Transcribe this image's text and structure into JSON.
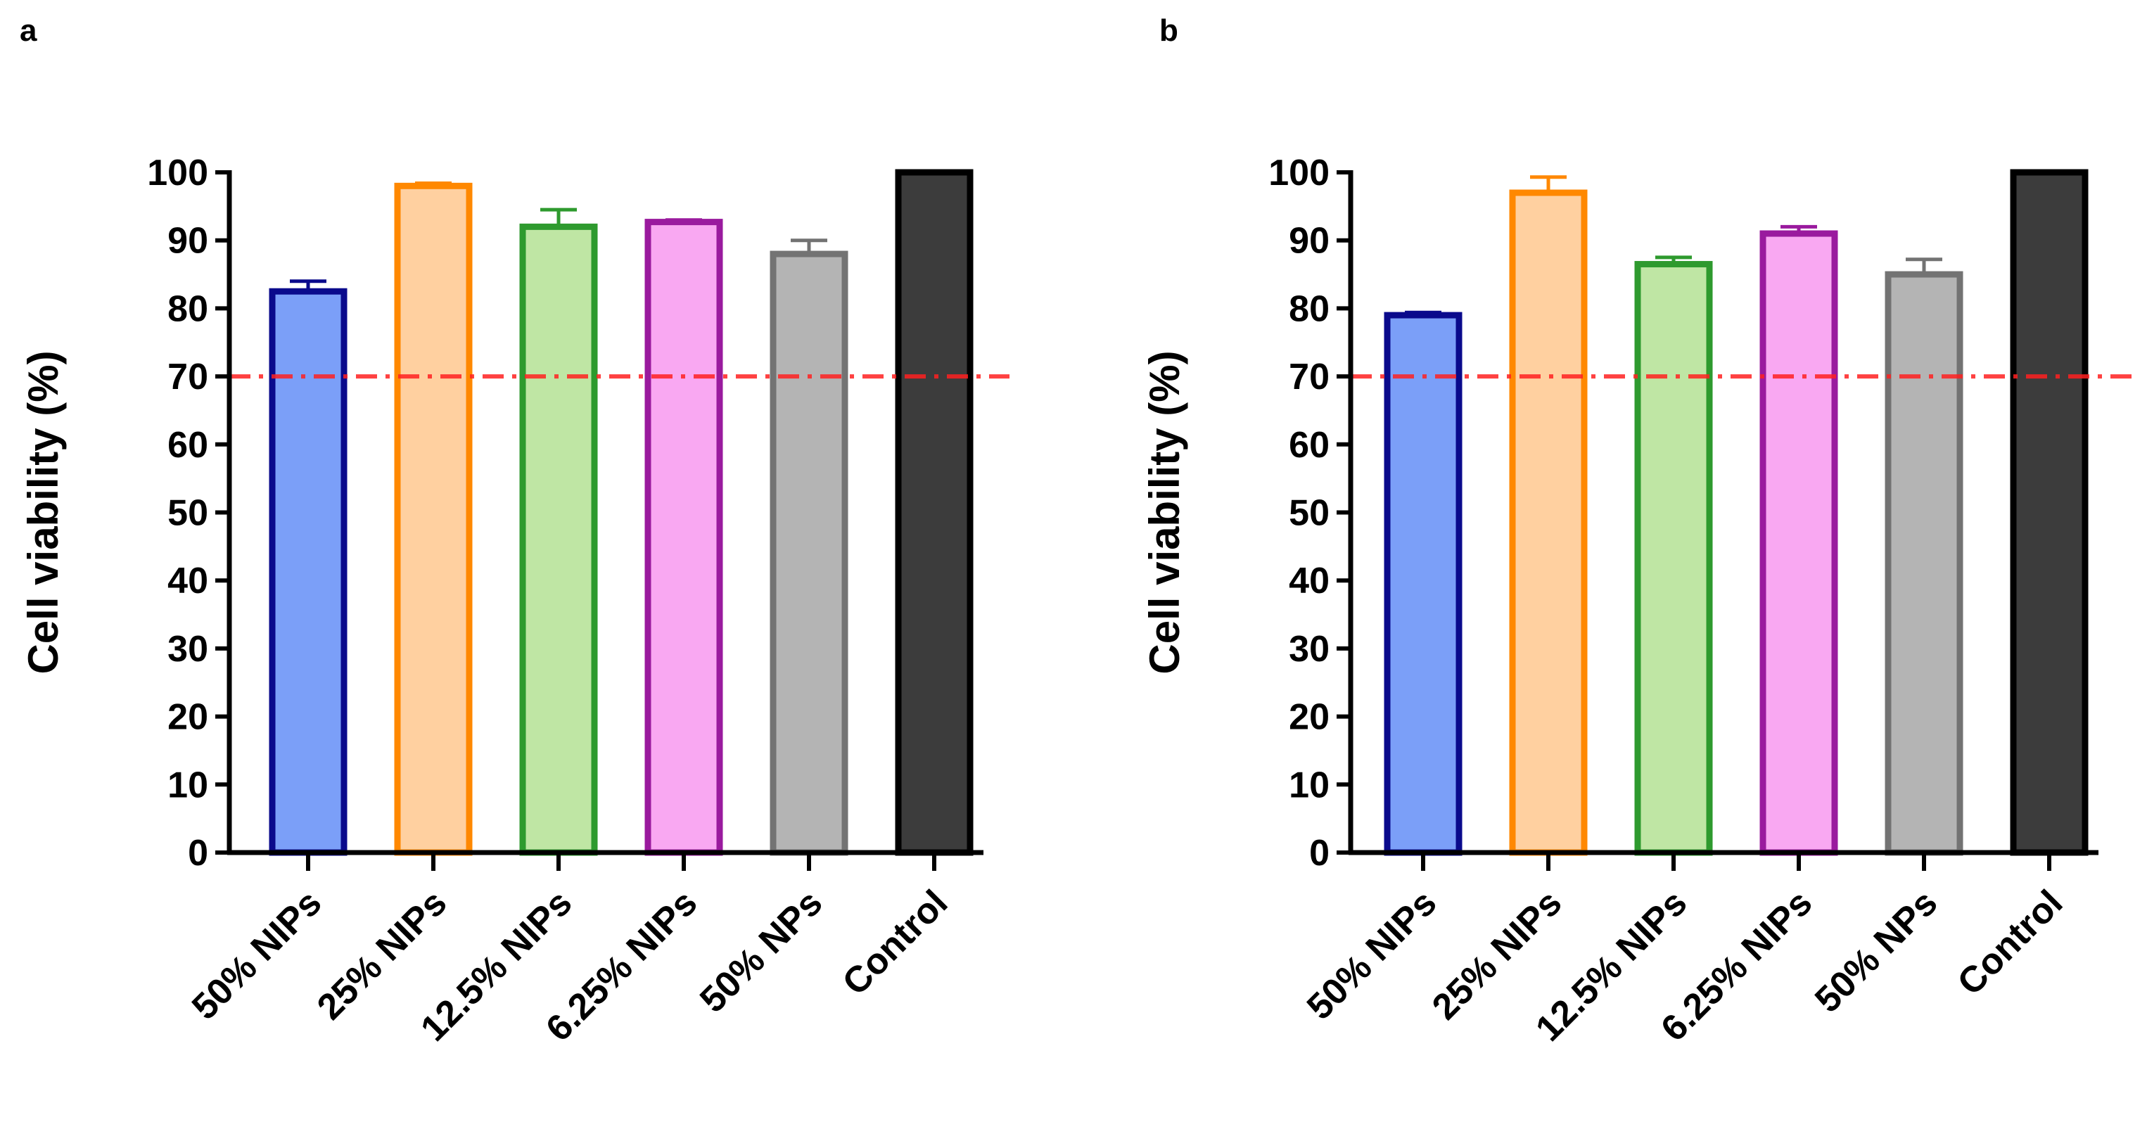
{
  "chart_data": [
    {
      "panel": "a",
      "type": "bar",
      "ylabel": "Cell viability (%)",
      "xlabel": "",
      "ylim": [
        0,
        100
      ],
      "yticks": [
        0,
        10,
        20,
        30,
        40,
        50,
        60,
        70,
        80,
        90,
        100
      ],
      "reference_line": {
        "y": 70,
        "style": "dashed",
        "color": "#ff2020"
      },
      "categories": [
        "50% NIPs",
        "25% NIPs",
        "12.5% NIPs",
        "6.25% NIPs",
        "50% NPs",
        "Control"
      ],
      "values": [
        82.5,
        98,
        92,
        92.7,
        88,
        100
      ],
      "errors": [
        1.5,
        0.4,
        2.5,
        0.3,
        2.0,
        0
      ],
      "fill_colors": [
        "#7b9ff8",
        "#ffd0a0",
        "#bfe6a4",
        "#f9a8f2",
        "#b4b4b4",
        "#3c3c3c"
      ],
      "edge_colors": [
        "#0a0a8c",
        "#ff8800",
        "#2e9a2e",
        "#9a1a9e",
        "#737373",
        "#000000"
      ]
    },
    {
      "panel": "b",
      "type": "bar",
      "ylabel": "Cell viability (%)",
      "xlabel": "",
      "ylim": [
        0,
        100
      ],
      "yticks": [
        0,
        10,
        20,
        30,
        40,
        50,
        60,
        70,
        80,
        90,
        100
      ],
      "reference_line": {
        "y": 70,
        "style": "dashed",
        "color": "#ff2020"
      },
      "categories": [
        "50% NIPs",
        "25% NIPs",
        "12.5% NIPs",
        "6.25% NIPs",
        "50% NPs",
        "Control"
      ],
      "values": [
        79,
        97,
        86.5,
        91,
        85,
        100
      ],
      "errors": [
        0.4,
        2.3,
        1.0,
        1.0,
        2.2,
        0
      ],
      "fill_colors": [
        "#7b9ff8",
        "#ffd0a0",
        "#bfe6a4",
        "#f9a8f2",
        "#b4b4b4",
        "#3c3c3c"
      ],
      "edge_colors": [
        "#0a0a8c",
        "#ff8800",
        "#2e9a2e",
        "#9a1a9e",
        "#737373",
        "#000000"
      ]
    }
  ]
}
